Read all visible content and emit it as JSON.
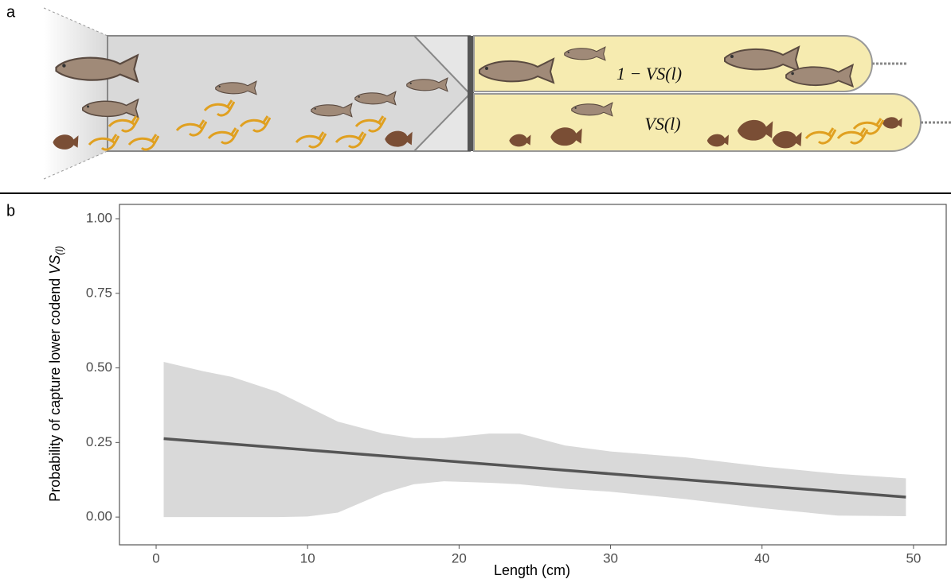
{
  "panel_labels": [
    "a",
    "b"
  ],
  "diagram": {
    "labels": [
      "1 − VS(l)",
      "VS(l)"
    ]
  },
  "chart_data": {
    "type": "line",
    "xlabel": "Length (cm)",
    "ylabel": "Probability of capture lower codend",
    "ylabel_symbol": "VS",
    "ylabel_subscript": "(l)",
    "x": [
      0.5,
      3,
      5,
      8,
      10,
      12,
      15,
      17,
      19,
      22,
      24,
      27,
      30,
      35,
      40,
      45,
      49.5
    ],
    "values": [
      0.263,
      0.253,
      0.245,
      0.233,
      0.225,
      0.217,
      0.205,
      0.197,
      0.189,
      0.177,
      0.169,
      0.157,
      0.145,
      0.125,
      0.105,
      0.085,
      0.067
    ],
    "color": "#555555",
    "band": {
      "upper": [
        0.52,
        0.49,
        0.47,
        0.42,
        0.37,
        0.32,
        0.28,
        0.265,
        0.265,
        0.28,
        0.28,
        0.24,
        0.22,
        0.2,
        0.17,
        0.145,
        0.13
      ],
      "lower": [
        0,
        0,
        0,
        0,
        0.002,
        0.015,
        0.08,
        0.11,
        0.12,
        0.115,
        0.11,
        0.095,
        0.085,
        0.06,
        0.03,
        0.005,
        0.003
      ],
      "color": "#d9d9d9"
    },
    "xlim": [
      -2.42,
      52.16
    ],
    "ylim": [
      -0.093,
      1.048
    ],
    "xticks": [
      0,
      10,
      20,
      30,
      40,
      50
    ],
    "yticks": [
      {
        "value": 0,
        "label": "0.00"
      },
      {
        "value": 0.25,
        "label": "0.25"
      },
      {
        "value": 0.5,
        "label": "0.50"
      },
      {
        "value": 0.75,
        "label": "0.75"
      },
      {
        "value": 1,
        "label": "1.00"
      }
    ]
  }
}
